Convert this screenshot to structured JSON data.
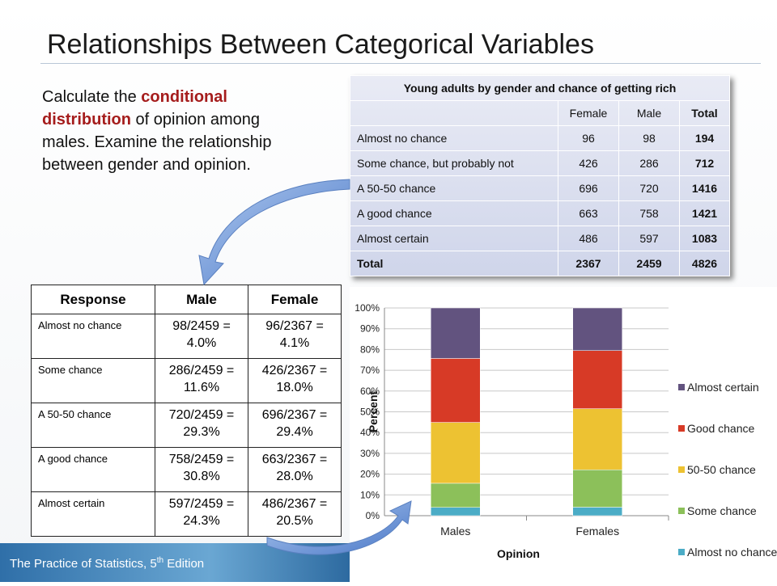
{
  "slide_title": "Relationships Between Categorical Variables",
  "body": {
    "before": "Calculate the ",
    "highlight": "conditional distribution",
    "after": " of opinion among males.  Examine the relationship between gender and opinion."
  },
  "table1": {
    "title": "Young adults by gender and chance of getting rich",
    "header": [
      "Female",
      "Male",
      "Total"
    ],
    "rows": [
      [
        "Almost no chance",
        96,
        98,
        194
      ],
      [
        "Some chance, but probably not",
        426,
        286,
        712
      ],
      [
        "A 50-50 chance",
        696,
        720,
        1416
      ],
      [
        "A good chance",
        663,
        758,
        1421
      ],
      [
        "Almost certain",
        486,
        597,
        1083
      ],
      [
        "Total",
        2367,
        2459,
        4826
      ]
    ]
  },
  "table2": {
    "header": [
      "Response",
      "Male",
      "Female"
    ],
    "rows": [
      [
        "Almost no chance",
        "98/2459 = 4.0%",
        "96/2367 = 4.1%"
      ],
      [
        "Some chance",
        "286/2459 = 11.6%",
        "426/2367 = 18.0%"
      ],
      [
        "A 50-50 chance",
        "720/2459 = 29.3%",
        "696/2367 = 29.4%"
      ],
      [
        "A good chance",
        "758/2459 = 30.8%",
        "663/2367 = 28.0%"
      ],
      [
        "Almost certain",
        "597/2459 = 24.3%",
        "486/2367 = 20.5%"
      ]
    ]
  },
  "chart_data": {
    "type": "stacked_bar",
    "x_label": "Opinion",
    "y_label": "Percent",
    "categories": [
      "Males",
      "Females"
    ],
    "series": [
      {
        "name": "Almost no chance",
        "color": "#4bacc6",
        "values": [
          4.0,
          4.1
        ]
      },
      {
        "name": "Some chance",
        "color": "#8cc05a",
        "values": [
          11.6,
          18.0
        ]
      },
      {
        "name": "50-50 chance",
        "color": "#edc232",
        "values": [
          29.3,
          29.4
        ]
      },
      {
        "name": "Good chance",
        "color": "#d73a26",
        "values": [
          30.8,
          28.0
        ]
      },
      {
        "name": "Almost certain",
        "color": "#62537f",
        "values": [
          24.3,
          20.5
        ]
      }
    ],
    "ylim": [
      0,
      100
    ],
    "yticks": [
      {
        "value": 0,
        "label": "0%"
      },
      {
        "value": 10,
        "label": "10%"
      },
      {
        "value": 20,
        "label": "20%"
      },
      {
        "value": 30,
        "label": "30%"
      },
      {
        "value": 40,
        "label": "40%"
      },
      {
        "value": 50,
        "label": "50%"
      },
      {
        "value": 60,
        "label": "60%"
      },
      {
        "value": 70,
        "label": "70%"
      },
      {
        "value": 80,
        "label": "80%"
      },
      {
        "value": 90,
        "label": "90%"
      },
      {
        "value": 100,
        "label": "100%"
      }
    ],
    "grid": true,
    "legend": "right"
  },
  "footer": {
    "text": "The Practice of Statistics, 5",
    "sup": "th",
    "after": " Edition"
  }
}
